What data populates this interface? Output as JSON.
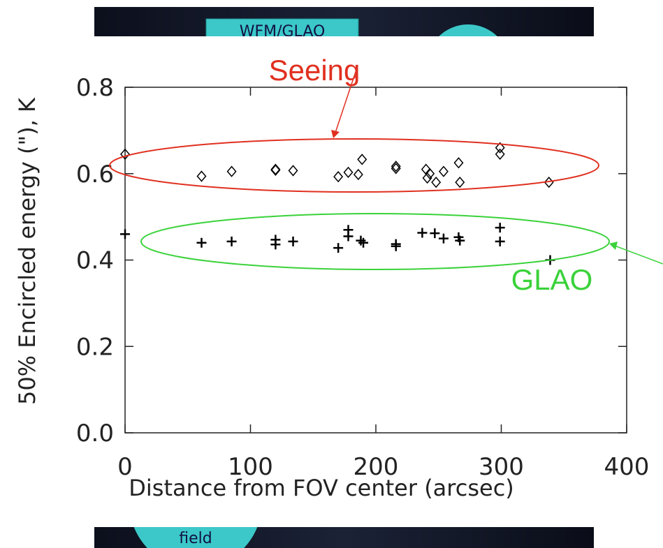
{
  "background_labels": [
    "WFM/GLAO",
    "field"
  ],
  "chart_data": {
    "type": "scatter",
    "xlabel": "Distance from FOV center (arcsec)",
    "ylabel": "50% Encircled energy (\"), K",
    "xlim": [
      0,
      400
    ],
    "xticks": [
      0,
      100,
      200,
      300,
      400
    ],
    "ylim": [
      0,
      0.8
    ],
    "yticks": [
      {
        "value": 0,
        "label": "0.0"
      },
      0.2,
      0.4,
      0.6,
      0.8
    ],
    "series": [
      {
        "name": "Seeing",
        "color": "#000000",
        "marker": "diamond",
        "annotation_color": "#e03020",
        "x": [
          0,
          61,
          85,
          120,
          120,
          134,
          170,
          178,
          186,
          189,
          216,
          216,
          240,
          241,
          243,
          248,
          254,
          266,
          267,
          299,
          299,
          338
        ],
        "values": [
          0.645,
          0.594,
          0.605,
          0.61,
          0.608,
          0.607,
          0.593,
          0.603,
          0.598,
          0.633,
          0.617,
          0.612,
          0.61,
          0.59,
          0.6,
          0.58,
          0.605,
          0.625,
          0.58,
          0.66,
          0.645,
          0.58
        ]
      },
      {
        "name": "GLAO",
        "color": "#000000",
        "marker": "plus",
        "annotation_color": "#3ad23a",
        "x": [
          0,
          61,
          85,
          120,
          120,
          134,
          170,
          178,
          178,
          188,
          190,
          216,
          216,
          237,
          247,
          254,
          266,
          267,
          299,
          299,
          339
        ],
        "values": [
          0.46,
          0.44,
          0.443,
          0.447,
          0.436,
          0.443,
          0.428,
          0.47,
          0.455,
          0.445,
          0.44,
          0.437,
          0.432,
          0.463,
          0.462,
          0.45,
          0.453,
          0.445,
          0.475,
          0.443,
          0.4
        ]
      }
    ]
  }
}
